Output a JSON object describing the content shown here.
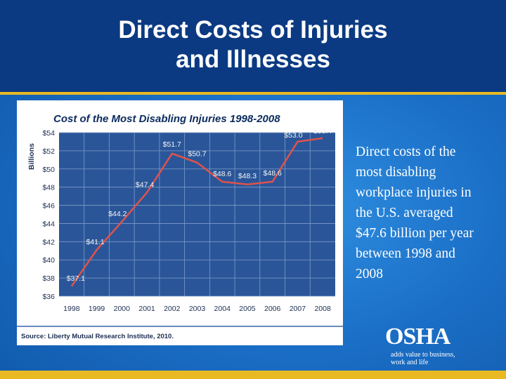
{
  "slide": {
    "title_line1": "Direct Costs of Injuries",
    "title_line2": "and Illnesses",
    "body_lines": [
      "Direct costs of  the",
      "most disabling",
      "workplace injuries in",
      "the U.S. averaged",
      "$47.6 billion per year",
      "between 1998 and",
      "2008"
    ],
    "logo_word": "OSHA",
    "logo_tag_line1": "adds value to business,",
    "logo_tag_line2": "work and life"
  },
  "colors": {
    "header_bg": "#0b3a82",
    "accent": "#e8b923",
    "plot_bg": "#2a5699",
    "line": "#e0524b"
  },
  "chart_data": {
    "type": "line",
    "title": "Cost of the Most Disabling Injuries 1998-2008",
    "ylabel": "Billions",
    "xlabel": "",
    "source": "Source: Liberty Mutual Research Institute, 2010.",
    "categories": [
      "1998",
      "1999",
      "2000",
      "2001",
      "2002",
      "2003",
      "2004",
      "2005",
      "2006",
      "2007",
      "2008"
    ],
    "values": [
      37.1,
      41.1,
      44.2,
      47.4,
      51.7,
      50.7,
      48.6,
      48.3,
      48.6,
      53.0,
      53.4
    ],
    "data_labels": [
      "$37.1",
      "$41.1",
      "$44.2",
      "$47.4",
      "$51.7",
      "$50.7",
      "$48.6",
      "$48.3",
      "$48.6",
      "$53.0",
      "$53.4"
    ],
    "y_ticks": [
      36,
      38,
      40,
      42,
      44,
      46,
      48,
      50,
      52,
      54
    ],
    "y_tick_labels": [
      "$36",
      "$38",
      "$40",
      "$42",
      "$44",
      "$46",
      "$48",
      "$50",
      "$52",
      "$54"
    ],
    "ylim": [
      36,
      54
    ],
    "grid": true
  }
}
